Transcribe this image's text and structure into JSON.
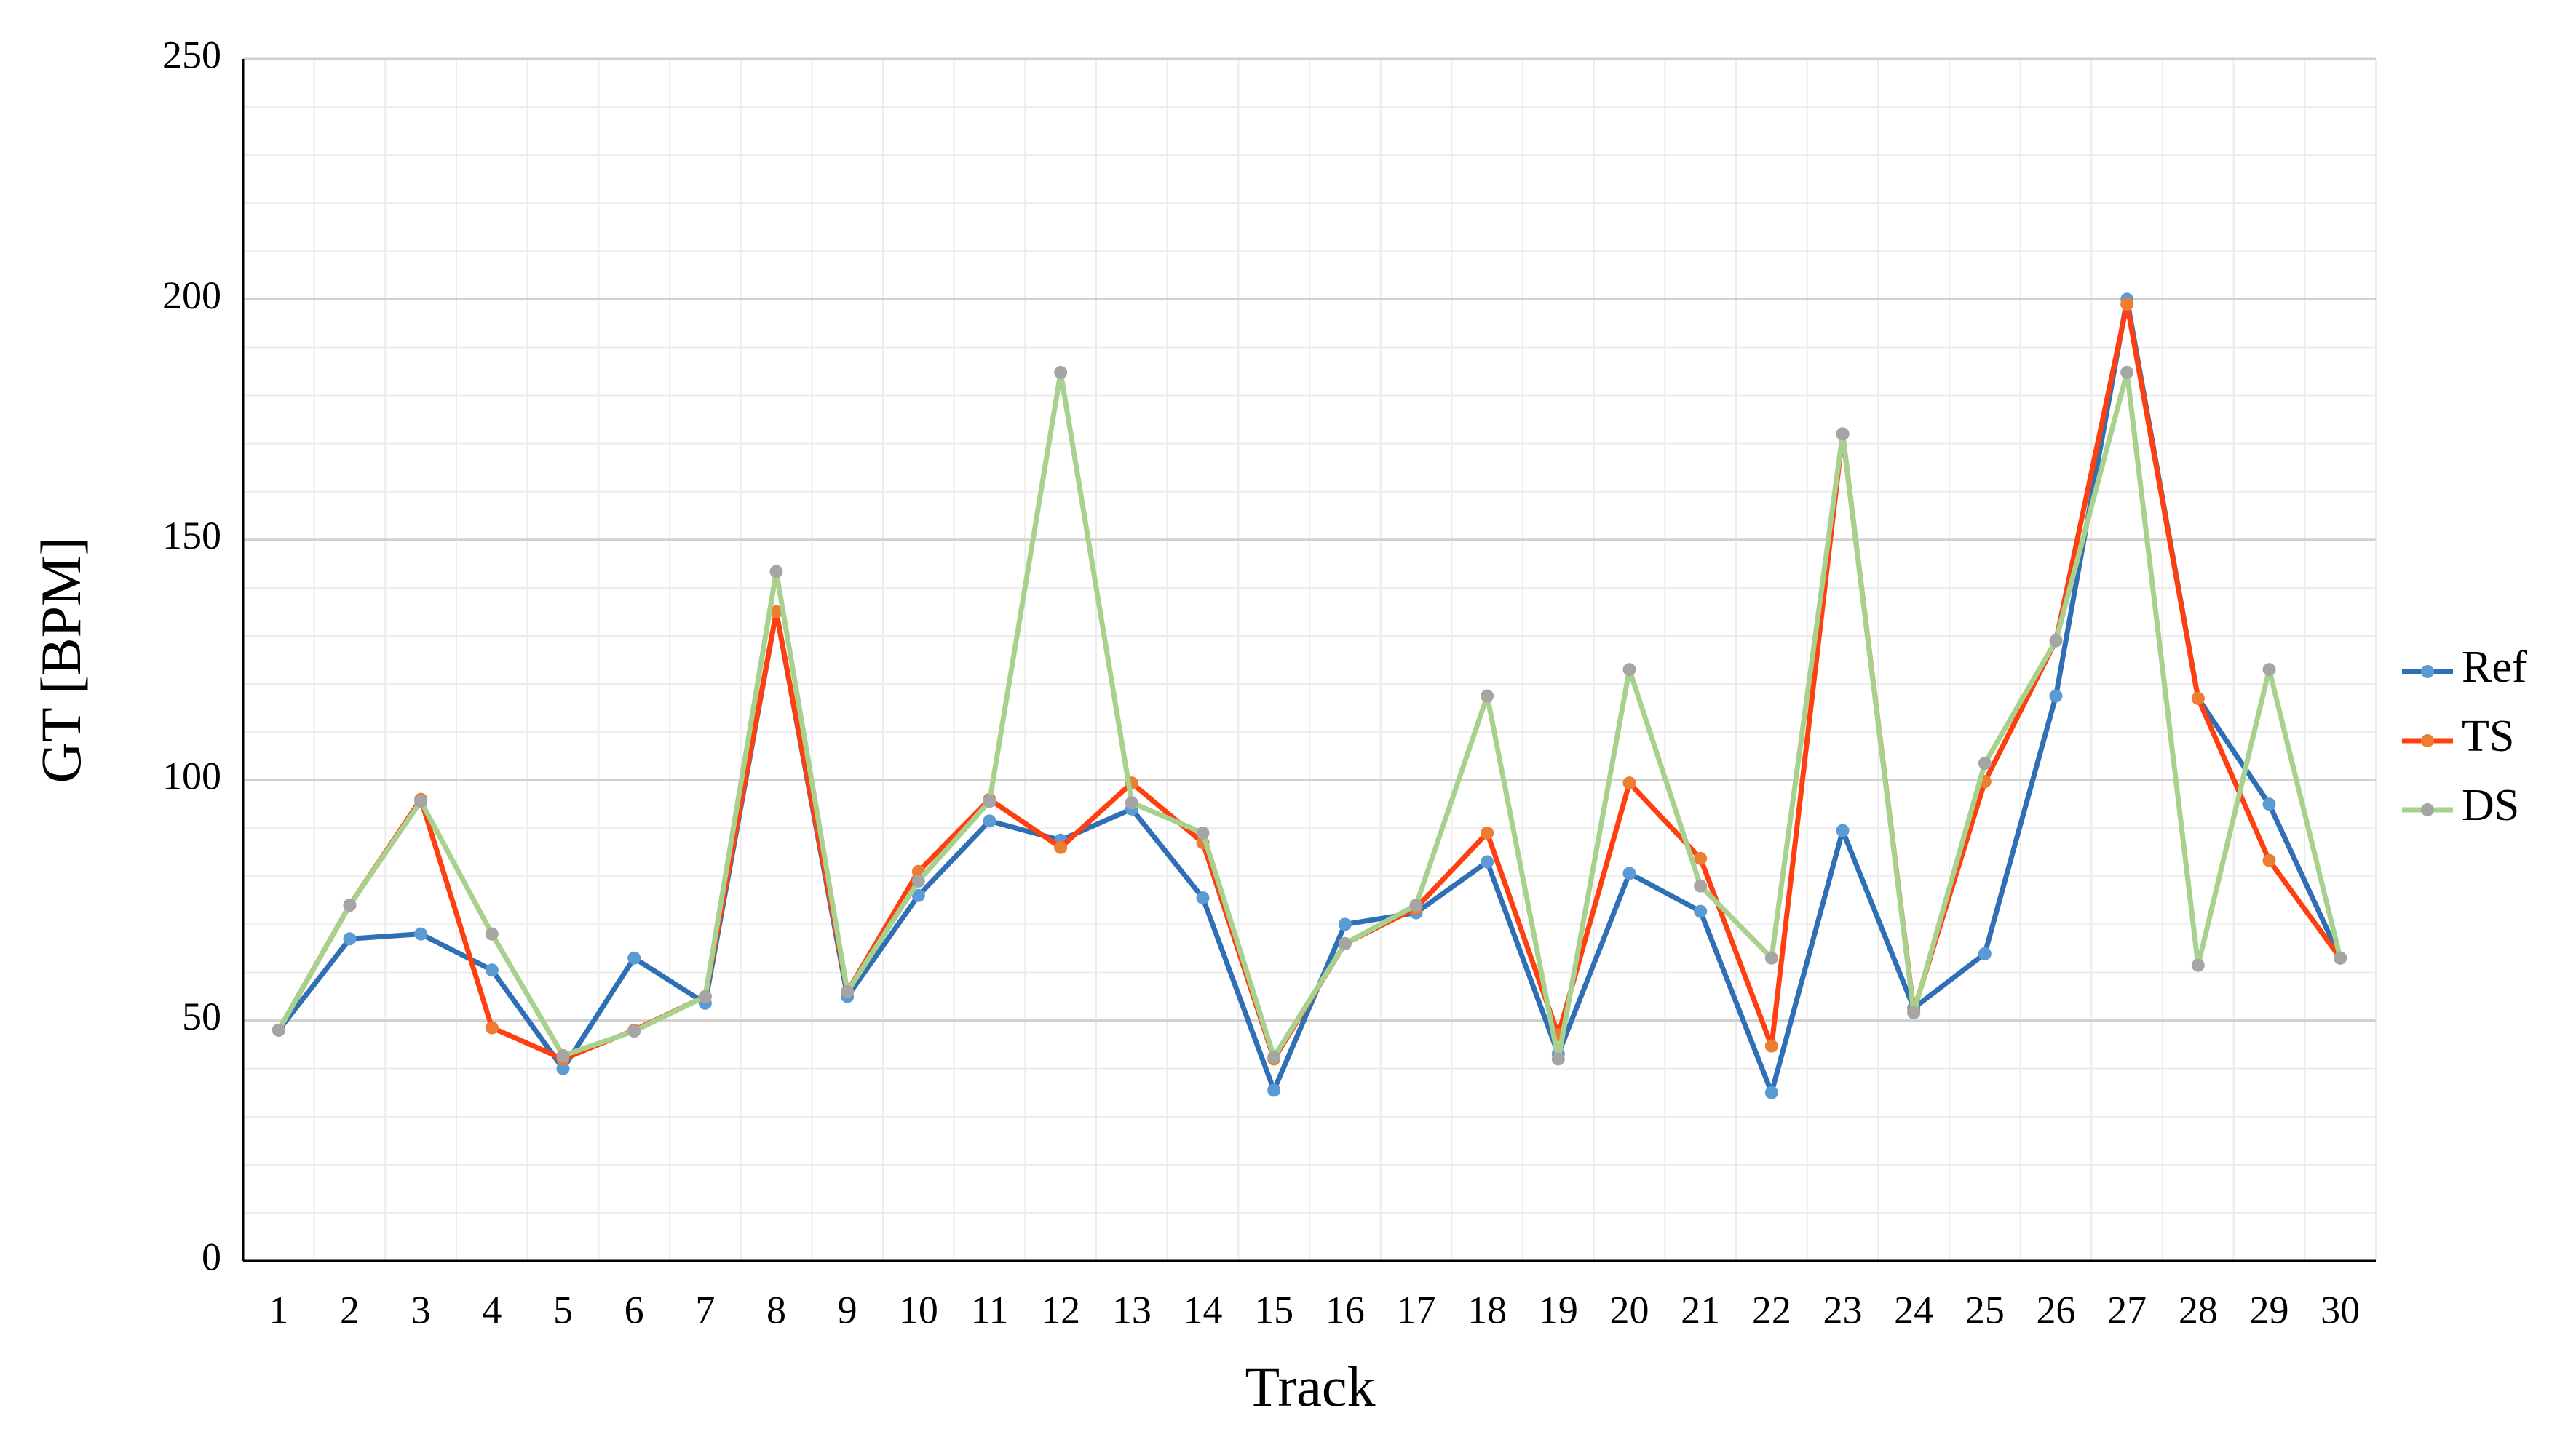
{
  "chart_data": {
    "type": "line",
    "x_label": "Track",
    "y_label": "GT [BPM]",
    "categories": [
      "1",
      "2",
      "3",
      "4",
      "5",
      "6",
      "7",
      "8",
      "9",
      "10",
      "11",
      "12",
      "13",
      "14",
      "15",
      "16",
      "17",
      "18",
      "19",
      "20",
      "21",
      "22",
      "23",
      "24",
      "25",
      "26",
      "27",
      "28",
      "29",
      "30"
    ],
    "series": [
      {
        "name": "Ref",
        "color": "#2e6fb5",
        "marker_color": "#5b9bd5",
        "values": [
          48,
          67,
          68,
          60.5,
          40,
          63,
          53.6,
          135,
          55,
          76,
          91.5,
          87.5,
          94,
          75.5,
          35.5,
          70,
          72.4,
          83,
          43,
          80.6,
          72.7,
          35,
          89.5,
          52.6,
          63.9,
          117.5,
          200,
          117,
          95,
          63
        ]
      },
      {
        "name": "TS",
        "color": "#ff3f0f",
        "marker_color": "#ed7d31",
        "values": [
          48,
          74,
          96,
          48.5,
          42,
          48,
          55,
          135,
          56,
          81,
          96,
          86,
          99.4,
          87,
          42,
          66,
          73.4,
          89,
          47,
          99.4,
          83.7,
          44.7,
          172,
          52,
          99.7,
          129,
          199,
          117,
          83.3,
          63
        ]
      },
      {
        "name": "DS",
        "color": "#a9d18e",
        "marker_color": "#a5a5a5",
        "values": [
          48,
          74,
          95.6,
          68,
          42.7,
          47.8,
          55,
          143.4,
          56,
          79,
          95.6,
          184.8,
          95.3,
          89,
          42.4,
          66,
          74,
          117.5,
          42,
          123,
          78,
          63,
          172,
          51.6,
          103.5,
          129,
          184.8,
          61.5,
          123,
          63
        ]
      }
    ],
    "ylim": [
      0,
      250
    ],
    "yticks": [
      0,
      50,
      100,
      150,
      200,
      250
    ],
    "minor_yticks": [
      10,
      20,
      30,
      40,
      60,
      70,
      80,
      90,
      110,
      120,
      130,
      140,
      160,
      170,
      180,
      190,
      210,
      220,
      230,
      240
    ],
    "grid": true,
    "legend": "right"
  }
}
